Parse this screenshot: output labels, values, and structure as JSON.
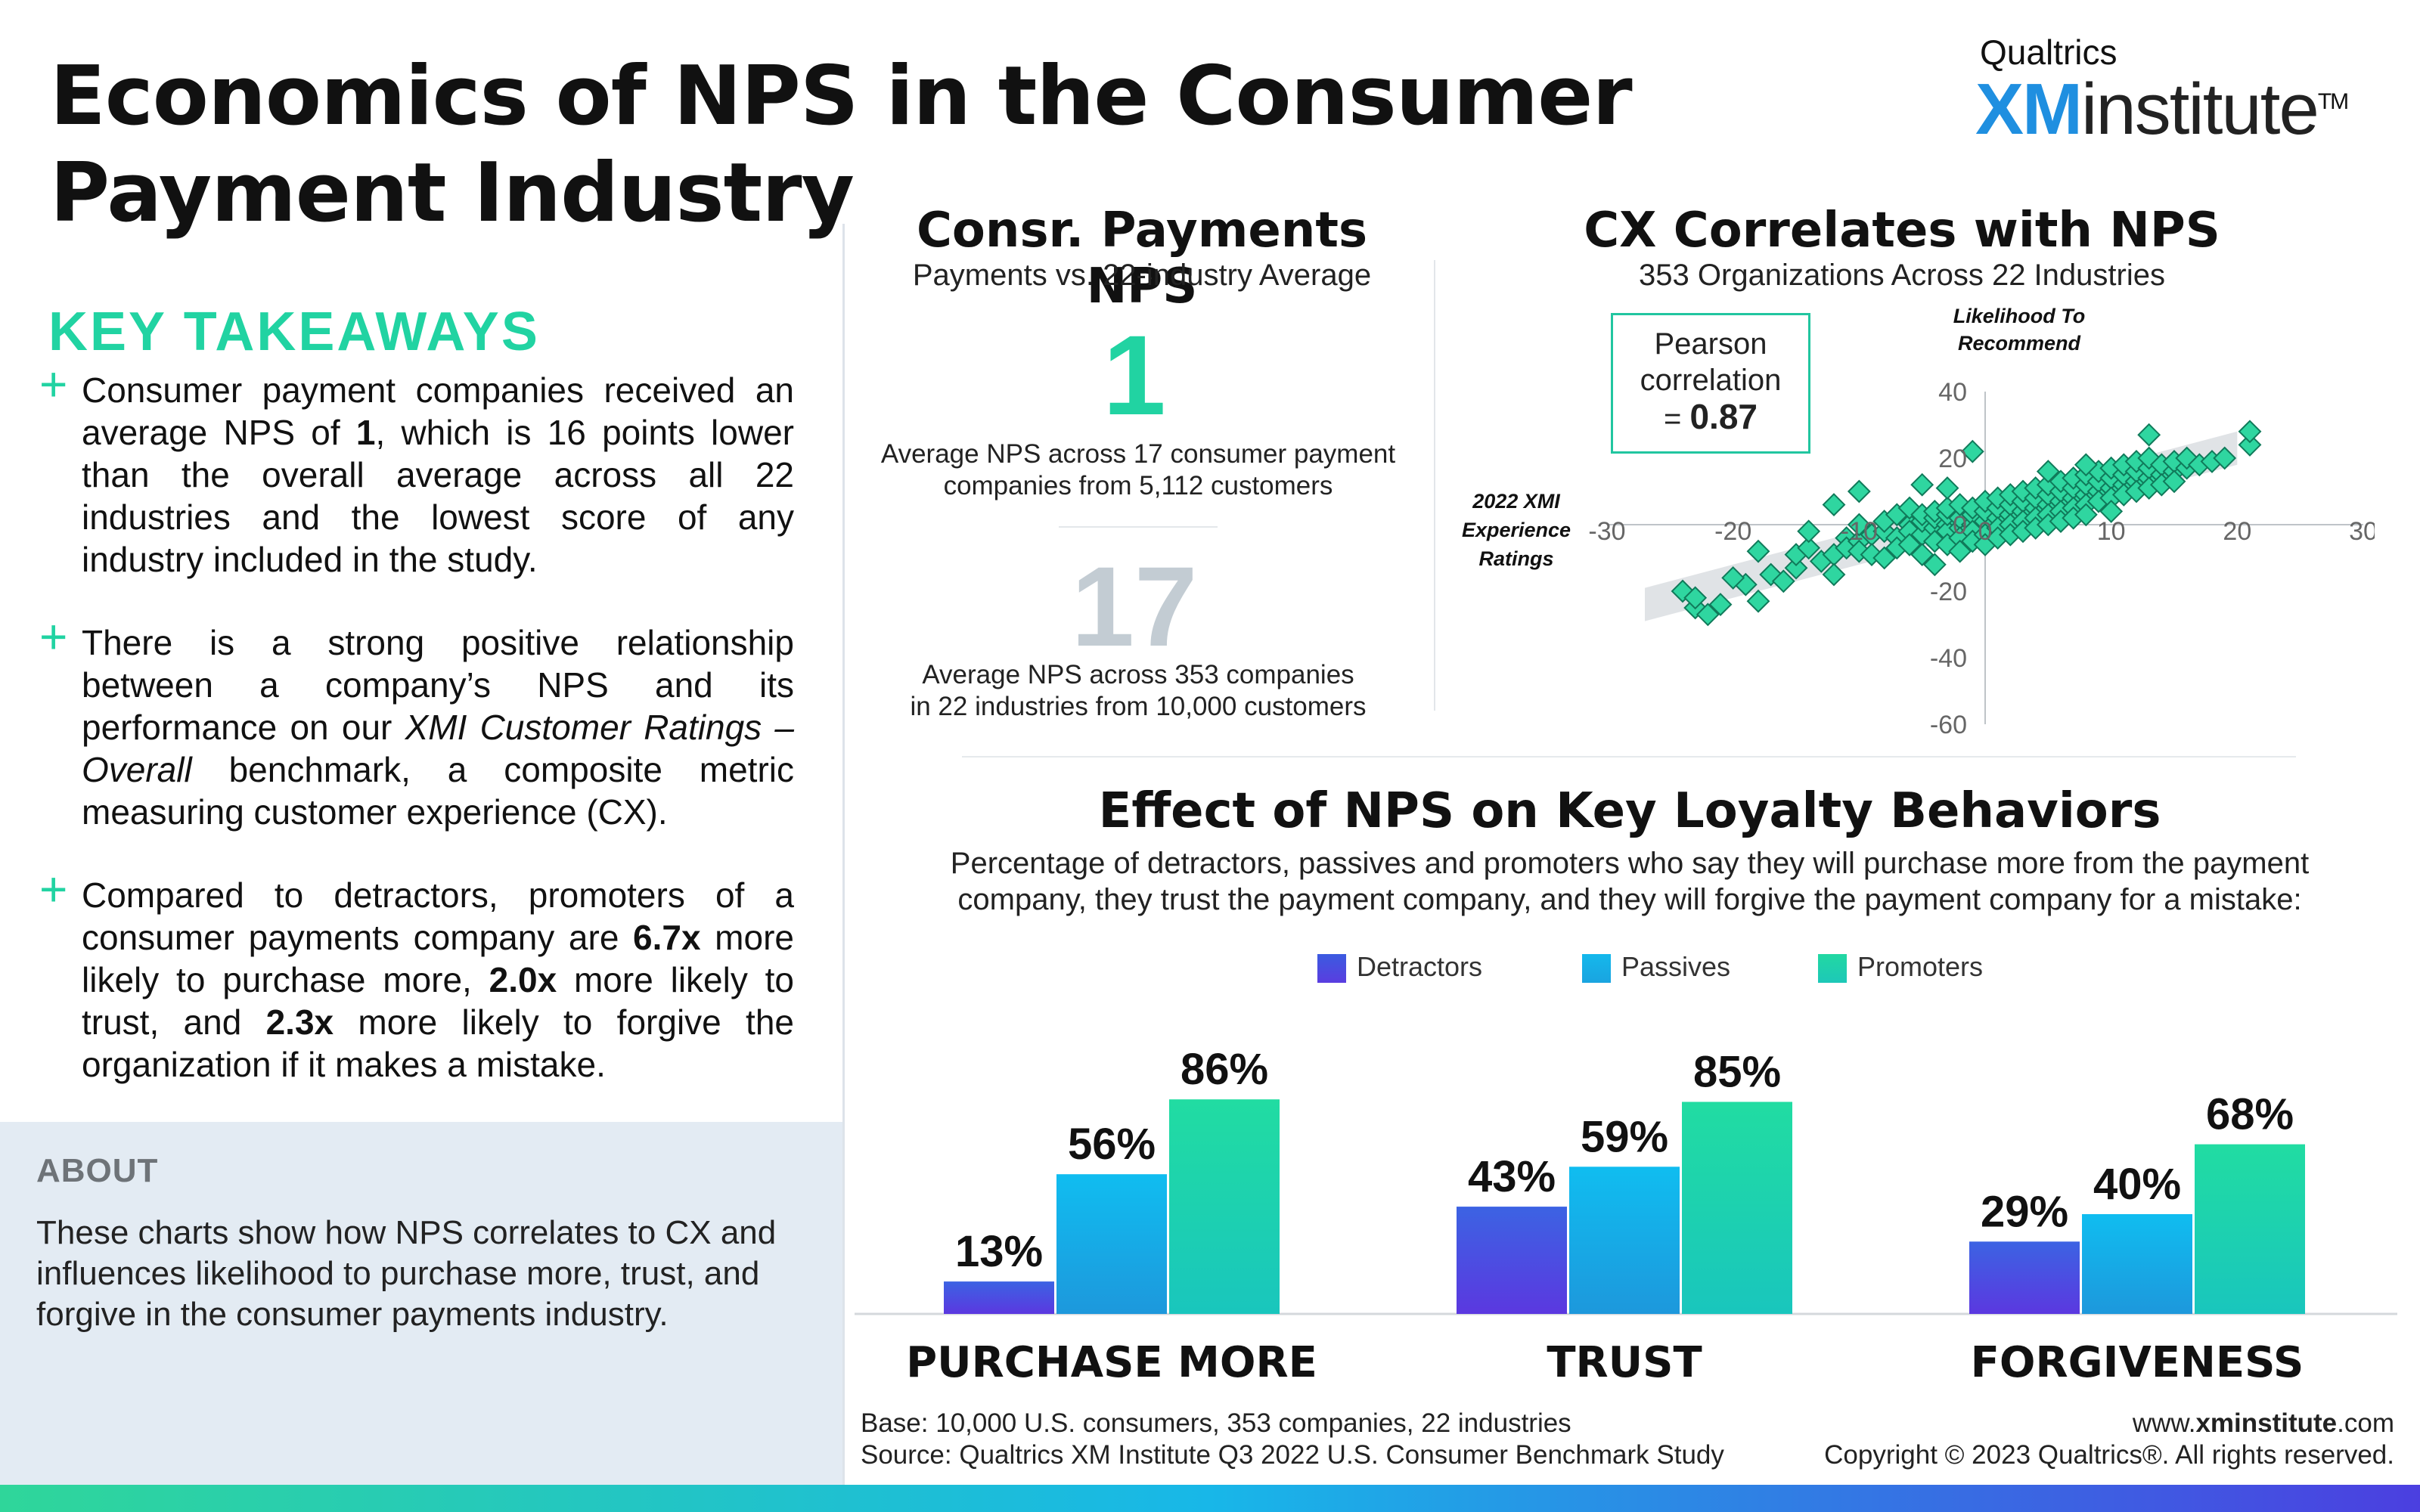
{
  "title": "Economics of NPS in the Consumer Payment Industry",
  "logo": {
    "top": "Qualtrics",
    "xm": "XM",
    "institute": "institute",
    "tm": "TM"
  },
  "key_takeaways": {
    "heading": "KEY TAKEAWAYS",
    "items": [
      {
        "icon": "plus-icon",
        "parts": [
          "Consumer payment companies received an average NPS of ",
          "1",
          ", which is 16 points lower than the overall average across all 22 industries and the lowest score of any industry included in the study."
        ]
      },
      {
        "icon": "plus-icon",
        "parts": [
          "There is a strong positive relationship between a company’s NPS and its performance on our ",
          "XMI Customer Ratings – Overall",
          " benchmark, a composite metric measuring customer experience (CX)."
        ]
      },
      {
        "icon": "plus-icon",
        "parts": [
          "Compared to detractors, promoters of a consumer payments company are ",
          "6.7x",
          " more likely to purchase more, ",
          "2.0x",
          " more likely to trust, and ",
          "2.3x",
          " more likely to forgive the organization if it makes a mistake."
        ]
      }
    ]
  },
  "about": {
    "heading": "ABOUT",
    "text": "These charts show how NPS correlates to CX and influences likelihood to purchase more, trust, and forgive in the consumer payments industry."
  },
  "nps_panel": {
    "heading": "Consr. Payments NPS",
    "subheading": "Payments vs. 22-industry Average",
    "value1": "1",
    "caption1": [
      "Average NPS across 17 consumer payment",
      "companies from 5,112 customers"
    ],
    "value2": "17",
    "caption2": [
      "Average NPS across 353 companies",
      "in 22 industries from 10,000 customers"
    ]
  },
  "scatter_panel": {
    "heading": "CX Correlates with NPS",
    "subheading": "353 Organizations Across 22 Industries",
    "pearson": {
      "line1": "Pearson",
      "line2": "correlation",
      "prefix": "= ",
      "value": "0.87"
    },
    "y_title": [
      "Likelihood To",
      "Recommend"
    ],
    "x_title": [
      "2022 XMI",
      "Experience",
      "Ratings"
    ]
  },
  "loyalty_panel": {
    "heading": "Effect of NPS on Key Loyalty Behaviors",
    "subheading": [
      "Percentage of detractors, passives and promoters who say they will purchase more from the payment",
      "company, they trust the payment company, and they will forgive the payment company for a mistake:"
    ]
  },
  "footer": {
    "base": "Base: 10,000 U.S. consumers, 353 companies, 22 industries",
    "source": "Source: Qualtrics XM Institute Q3 2022 U.S. Consumer Benchmark Study",
    "site_pre": "www.",
    "site_bold": "xminstitute",
    "site_post": ".com",
    "copyright": "Copyright © 2023 Qualtrics®. All rights reserved."
  },
  "colors": {
    "accent": "#21d3a2",
    "detractors": "#4b3fe0",
    "passives": "#18b7e8",
    "promoters": "#22d6a4"
  },
  "chart_data": [
    {
      "type": "scatter",
      "title": "CX Correlates with NPS",
      "subtitle": "353 Organizations Across 22 Industries",
      "xlabel": "2022 XMI Experience Ratings",
      "ylabel": "Likelihood To Recommend",
      "xlim": [
        -30,
        30
      ],
      "ylim": [
        -60,
        40
      ],
      "x_ticks": [
        "-30",
        "-20",
        "-10",
        "0",
        "10",
        "20",
        "30"
      ],
      "y_ticks": [
        "40",
        "20",
        "0",
        "-20",
        "-40",
        "-60"
      ],
      "points": [
        [
          -24,
          -20
        ],
        [
          -23,
          -25
        ],
        [
          -22,
          -27
        ],
        [
          -23,
          -22
        ],
        [
          -21,
          -24
        ],
        [
          -19,
          -18
        ],
        [
          -18,
          -23
        ],
        [
          -17,
          -15
        ],
        [
          -16,
          -17
        ],
        [
          -15,
          -13
        ],
        [
          -15,
          -9
        ],
        [
          -14,
          -7
        ],
        [
          -13,
          -11
        ],
        [
          -12,
          -9
        ],
        [
          -12,
          -15
        ],
        [
          -11,
          -4
        ],
        [
          -11,
          -7
        ],
        [
          -10,
          -5
        ],
        [
          -10,
          -8
        ],
        [
          -10,
          0
        ],
        [
          -9,
          -3
        ],
        [
          -9,
          -9
        ],
        [
          -8,
          -10
        ],
        [
          -8,
          -2
        ],
        [
          -8,
          1
        ],
        [
          -7,
          -4
        ],
        [
          -7,
          -7
        ],
        [
          -7,
          3
        ],
        [
          -6,
          0
        ],
        [
          -6,
          -2
        ],
        [
          -6,
          -6
        ],
        [
          -6,
          5
        ],
        [
          -5,
          -3
        ],
        [
          -5,
          1
        ],
        [
          -5,
          3
        ],
        [
          -5,
          -9
        ],
        [
          -4,
          -1
        ],
        [
          -4,
          2
        ],
        [
          -4,
          4
        ],
        [
          -4,
          -5
        ],
        [
          -4,
          -12
        ],
        [
          -3,
          0
        ],
        [
          -3,
          -2
        ],
        [
          -3,
          3
        ],
        [
          -3,
          5
        ],
        [
          -3,
          -6
        ],
        [
          -2,
          -1
        ],
        [
          -2,
          2
        ],
        [
          -2,
          6
        ],
        [
          -2,
          -4
        ],
        [
          -2,
          -8
        ],
        [
          -1,
          0
        ],
        [
          -1,
          3
        ],
        [
          -1,
          5
        ],
        [
          -1,
          -2
        ],
        [
          -1,
          -5
        ],
        [
          0,
          1
        ],
        [
          0,
          4
        ],
        [
          0,
          7
        ],
        [
          0,
          -3
        ],
        [
          0,
          -6
        ],
        [
          1,
          2
        ],
        [
          1,
          5
        ],
        [
          1,
          8
        ],
        [
          1,
          -1
        ],
        [
          1,
          -4
        ],
        [
          2,
          3
        ],
        [
          2,
          6
        ],
        [
          2,
          9
        ],
        [
          2,
          0
        ],
        [
          2,
          -3
        ],
        [
          3,
          4
        ],
        [
          3,
          7
        ],
        [
          3,
          10
        ],
        [
          3,
          1
        ],
        [
          3,
          -2
        ],
        [
          4,
          5
        ],
        [
          4,
          8
        ],
        [
          4,
          11
        ],
        [
          4,
          2
        ],
        [
          4,
          -1
        ],
        [
          5,
          6
        ],
        [
          5,
          9
        ],
        [
          5,
          12
        ],
        [
          5,
          3
        ],
        [
          5,
          0
        ],
        [
          6,
          7
        ],
        [
          6,
          10
        ],
        [
          6,
          13
        ],
        [
          6,
          4
        ],
        [
          6,
          1
        ],
        [
          7,
          8
        ],
        [
          7,
          11
        ],
        [
          7,
          14
        ],
        [
          7,
          5
        ],
        [
          7,
          2
        ],
        [
          8,
          9
        ],
        [
          8,
          12
        ],
        [
          8,
          15
        ],
        [
          8,
          6
        ],
        [
          8,
          3
        ],
        [
          9,
          10
        ],
        [
          9,
          13
        ],
        [
          9,
          16
        ],
        [
          9,
          7
        ],
        [
          10,
          11
        ],
        [
          10,
          14
        ],
        [
          10,
          17
        ],
        [
          10,
          8
        ],
        [
          10,
          4
        ],
        [
          11,
          12
        ],
        [
          11,
          15
        ],
        [
          11,
          18
        ],
        [
          11,
          9
        ],
        [
          12,
          13
        ],
        [
          12,
          16
        ],
        [
          12,
          19
        ],
        [
          12,
          10
        ],
        [
          13,
          14
        ],
        [
          13,
          17
        ],
        [
          13,
          20
        ],
        [
          13,
          11
        ],
        [
          14,
          15
        ],
        [
          14,
          18
        ],
        [
          14,
          12
        ],
        [
          15,
          16
        ],
        [
          15,
          19
        ],
        [
          15,
          13
        ],
        [
          16,
          17
        ],
        [
          16,
          20
        ],
        [
          17,
          18
        ],
        [
          18,
          19
        ],
        [
          19,
          20
        ],
        [
          21,
          24
        ],
        [
          21,
          28
        ],
        [
          13,
          27
        ],
        [
          -1,
          22
        ],
        [
          8,
          18
        ],
        [
          5,
          16
        ],
        [
          -3,
          11
        ],
        [
          -5,
          12
        ],
        [
          -10,
          10
        ],
        [
          -12,
          6
        ],
        [
          -14,
          -2
        ],
        [
          -18,
          -8
        ],
        [
          -20,
          -16
        ]
      ],
      "pearson_r": 0.87
    },
    {
      "type": "bar",
      "title": "Effect of NPS on Key Loyalty Behaviors",
      "categories": [
        "PURCHASE MORE",
        "TRUST",
        "FORGIVENESS"
      ],
      "series": [
        {
          "name": "Detractors",
          "values": [
            13,
            43,
            29
          ],
          "color": "#4b3fe0"
        },
        {
          "name": "Passives",
          "values": [
            56,
            59,
            40
          ],
          "color": "#18b7e8"
        },
        {
          "name": "Promoters",
          "values": [
            86,
            85,
            68
          ],
          "color": "#22d6a4"
        }
      ],
      "value_labels": [
        [
          "13%",
          "43%",
          "29%"
        ],
        [
          "56%",
          "59%",
          "40%"
        ],
        [
          "86%",
          "85%",
          "68%"
        ]
      ],
      "ylim": [
        0,
        100
      ],
      "legend_position": "top"
    }
  ]
}
